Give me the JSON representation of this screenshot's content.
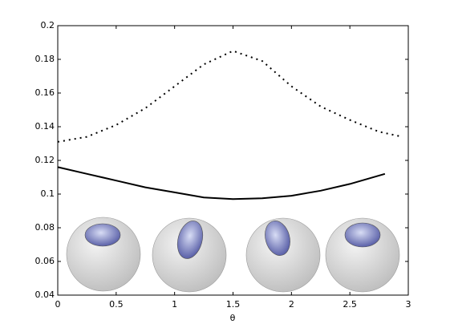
{
  "chart_data": {
    "type": "line",
    "xlabel": "θ",
    "xlim": [
      0,
      3
    ],
    "xticks": [
      0,
      0.5,
      1,
      1.5,
      2,
      2.5,
      3
    ],
    "ylim": [
      0.04,
      0.2
    ],
    "yticks": [
      0.04,
      0.06,
      0.08,
      0.1,
      0.12,
      0.14,
      0.16,
      0.18,
      0.2
    ],
    "series": [
      {
        "style": "dotted",
        "color": "#000000",
        "x": [
          0,
          0.25,
          0.5,
          0.75,
          1,
          1.25,
          1.5,
          1.75,
          2,
          2.25,
          2.5,
          2.75,
          2.95
        ],
        "values": [
          0.131,
          0.134,
          0.141,
          0.151,
          0.164,
          0.177,
          0.185,
          0.179,
          0.164,
          0.152,
          0.144,
          0.137,
          0.134
        ]
      },
      {
        "style": "solid",
        "color": "#000000",
        "x": [
          0,
          0.25,
          0.5,
          0.75,
          1,
          1.25,
          1.5,
          1.75,
          2,
          2.25,
          2.5,
          2.8
        ],
        "values": [
          0.116,
          0.112,
          0.108,
          0.104,
          0.101,
          0.098,
          0.097,
          0.0975,
          0.099,
          0.102,
          0.106,
          0.112
        ]
      }
    ]
  }
}
